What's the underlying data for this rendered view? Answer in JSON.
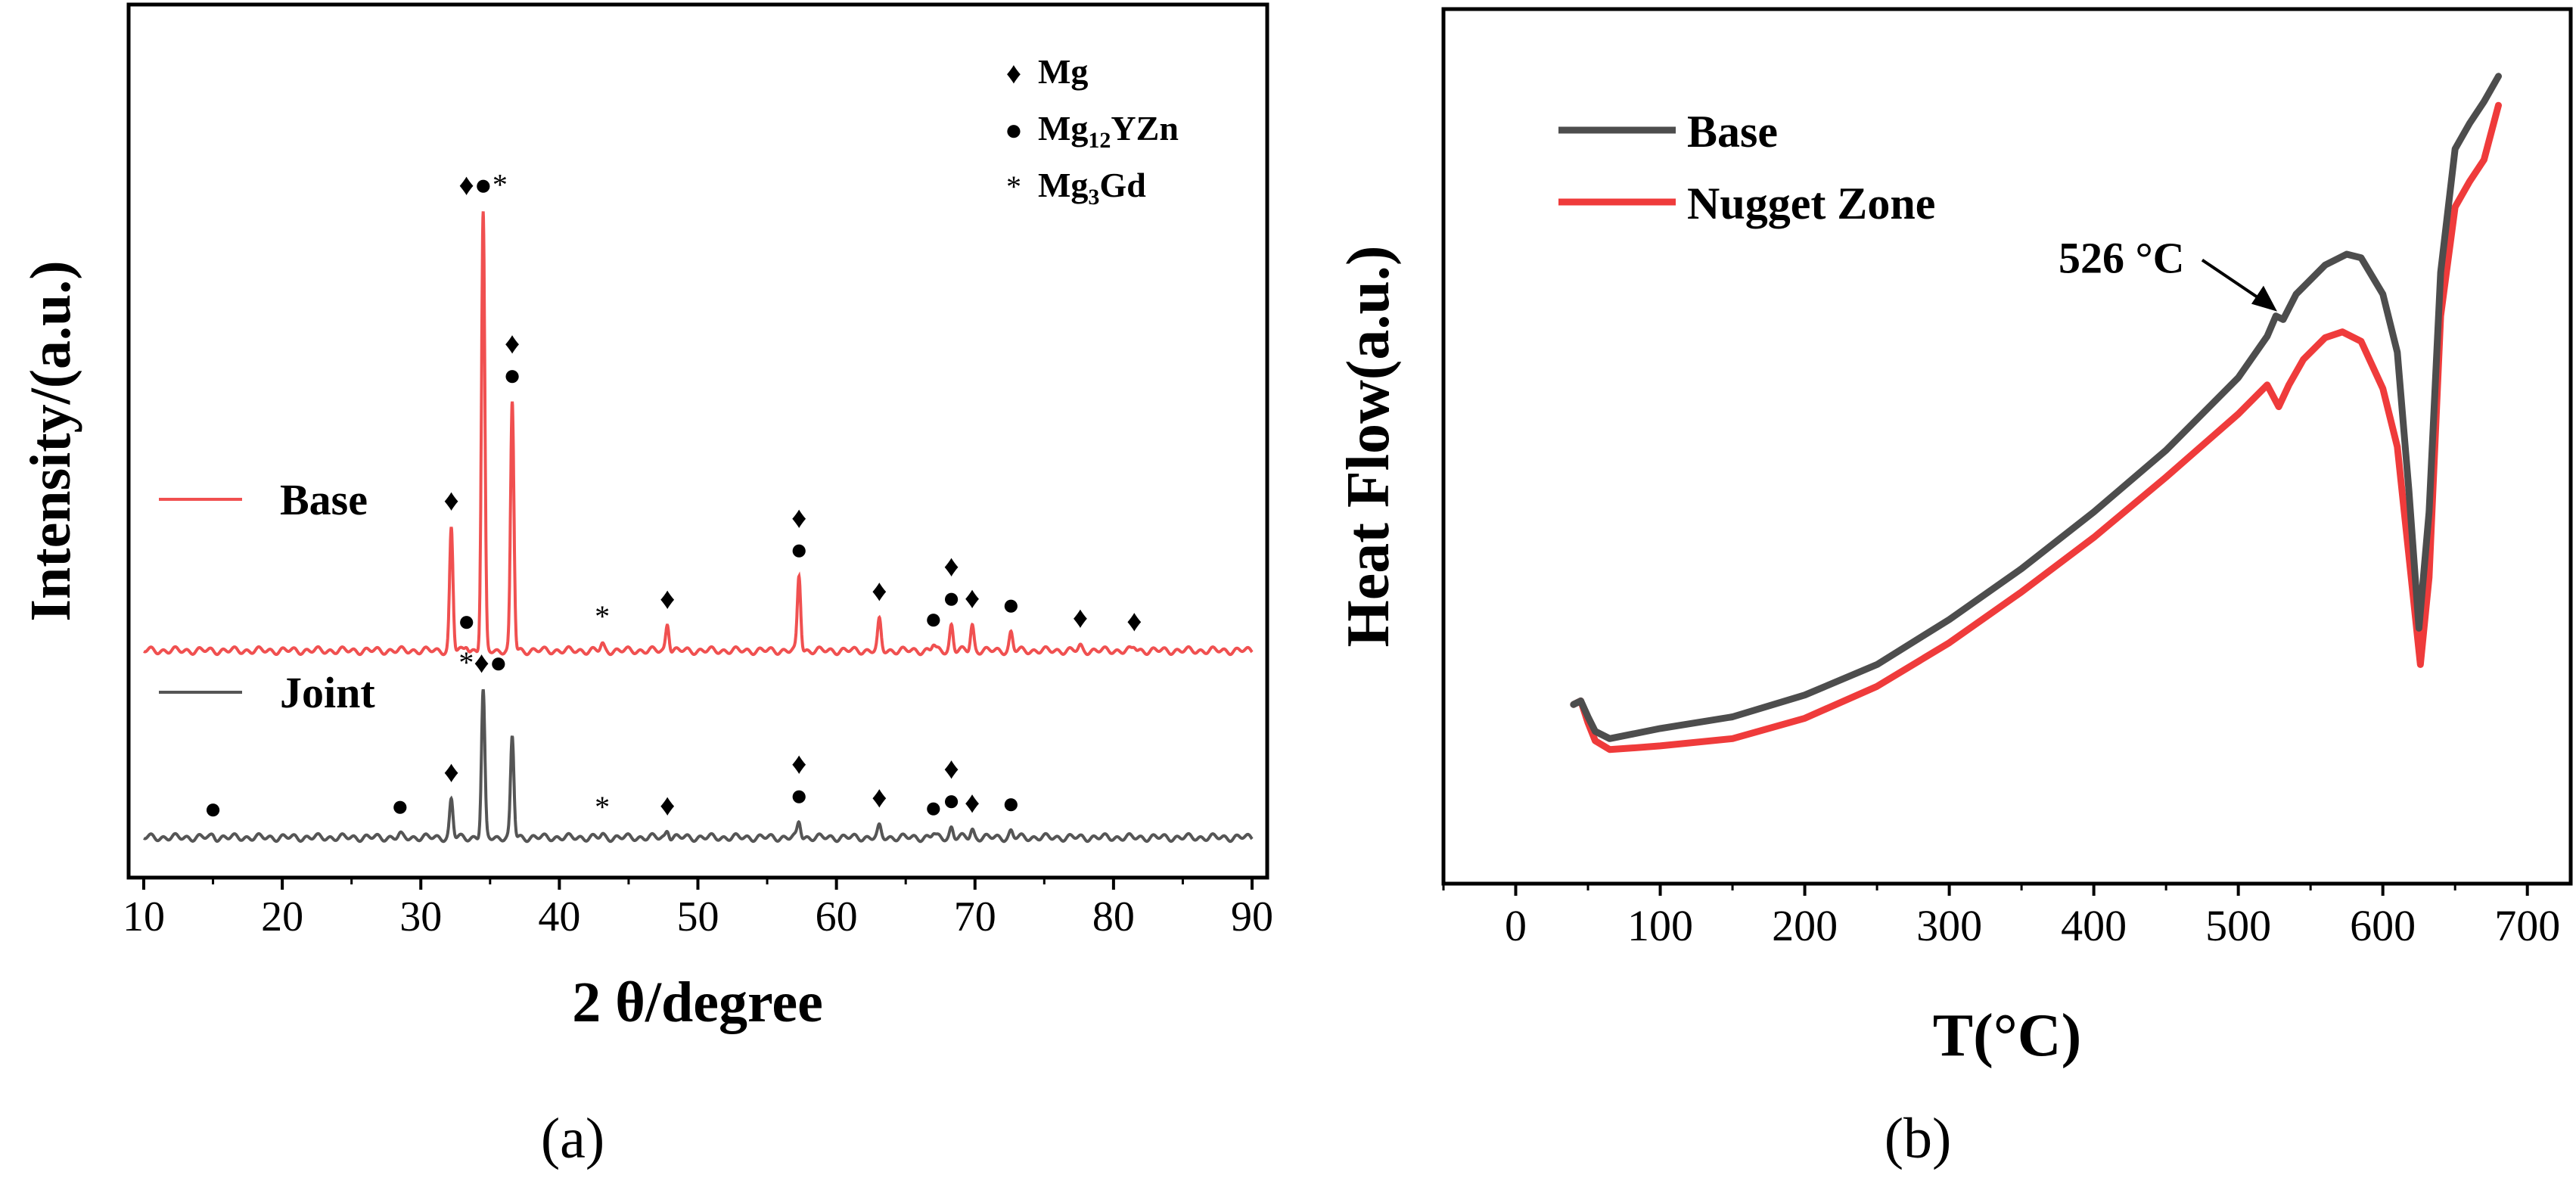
{
  "chart_data": [
    {
      "type": "line",
      "panel_label": "(a)",
      "xlabel": "2 θ/degree",
      "ylabel": "Intensity/(a.u.)",
      "xlim": [
        10,
        90
      ],
      "xticks": [
        10,
        20,
        30,
        40,
        50,
        60,
        70,
        80,
        90
      ],
      "grid": false,
      "legend_placement": "inline",
      "series": [
        {
          "name": "Base",
          "color": "#f05050",
          "baseline": 1.0,
          "peaks": [
            {
              "x": 32.2,
              "h": 0.62
            },
            {
              "x": 33.3,
              "h": 0.03
            },
            {
              "x": 34.5,
              "h": 2.22
            },
            {
              "x": 36.6,
              "h": 1.26
            },
            {
              "x": 43.1,
              "h": 0.03
            },
            {
              "x": 47.8,
              "h": 0.14
            },
            {
              "x": 57.3,
              "h": 0.38
            },
            {
              "x": 63.1,
              "h": 0.15
            },
            {
              "x": 67.0,
              "h": 0.03
            },
            {
              "x": 68.3,
              "h": 0.13
            },
            {
              "x": 69.8,
              "h": 0.13
            },
            {
              "x": 72.6,
              "h": 0.09
            },
            {
              "x": 77.6,
              "h": 0.02
            },
            {
              "x": 81.5,
              "h": 0.02
            }
          ]
        },
        {
          "name": "Joint",
          "color": "#555555",
          "baseline": 0.05,
          "peaks": [
            {
              "x": 15.0,
              "h": 0.01
            },
            {
              "x": 28.5,
              "h": 0.01
            },
            {
              "x": 32.2,
              "h": 0.19
            },
            {
              "x": 34.5,
              "h": 0.74
            },
            {
              "x": 36.6,
              "h": 0.51
            },
            {
              "x": 43.1,
              "h": 0.01
            },
            {
              "x": 47.8,
              "h": 0.04
            },
            {
              "x": 57.3,
              "h": 0.08
            },
            {
              "x": 63.1,
              "h": 0.05
            },
            {
              "x": 67.0,
              "h": 0.02
            },
            {
              "x": 68.3,
              "h": 0.05
            },
            {
              "x": 69.8,
              "h": 0.04
            },
            {
              "x": 72.6,
              "h": 0.03
            }
          ]
        }
      ],
      "phase_legend": [
        {
          "symbol": "♦",
          "label": "Mg",
          "sub": "",
          "suffix": ""
        },
        {
          "symbol": "●",
          "label": "Mg",
          "sub": "12",
          "suffix": "YZn"
        },
        {
          "symbol": "*",
          "label": "Mg",
          "sub": "3",
          "suffix": "Gd"
        }
      ],
      "phase_markers": {
        "Base": [
          {
            "x": 32.2,
            "symbols": "♦"
          },
          {
            "x": 33.3,
            "symbols": "●"
          },
          {
            "x": 34.5,
            "symbols": "♦●*"
          },
          {
            "x": 36.6,
            "symbols": "♦●"
          },
          {
            "x": 43.1,
            "symbols": "*"
          },
          {
            "x": 47.8,
            "symbols": "♦"
          },
          {
            "x": 57.3,
            "symbols": "♦●"
          },
          {
            "x": 63.1,
            "symbols": "♦"
          },
          {
            "x": 67.0,
            "symbols": "●"
          },
          {
            "x": 68.3,
            "symbols": "♦●"
          },
          {
            "x": 69.8,
            "symbols": "♦"
          },
          {
            "x": 72.6,
            "symbols": "●"
          },
          {
            "x": 77.6,
            "symbols": "♦"
          },
          {
            "x": 81.5,
            "symbols": "♦"
          }
        ],
        "Joint": [
          {
            "x": 15.0,
            "symbols": "●"
          },
          {
            "x": 28.5,
            "symbols": "●"
          },
          {
            "x": 32.2,
            "symbols": "♦"
          },
          {
            "x": 34.5,
            "symbols": "*♦●"
          },
          {
            "x": 43.1,
            "symbols": "*"
          },
          {
            "x": 47.8,
            "symbols": "♦"
          },
          {
            "x": 57.3,
            "symbols": "♦●"
          },
          {
            "x": 63.1,
            "symbols": "♦"
          },
          {
            "x": 67.0,
            "symbols": "●"
          },
          {
            "x": 68.3,
            "symbols": "♦●"
          },
          {
            "x": 69.8,
            "symbols": "♦"
          },
          {
            "x": 72.6,
            "symbols": "●"
          }
        ]
      }
    },
    {
      "type": "line",
      "panel_label": "(b)",
      "xlabel": "T(°C)",
      "ylabel": "Heat Flow(a.u.)",
      "xlim": [
        -50,
        730
      ],
      "ylim": [
        0,
        10
      ],
      "xticks": [
        0,
        100,
        200,
        300,
        400,
        500,
        600,
        700
      ],
      "grid": false,
      "legend_placement": "top-left",
      "annotation": {
        "text": "526 °C",
        "x": 530,
        "y": 6.92
      },
      "series": [
        {
          "name": "Base",
          "color": "#4d4d4d",
          "points": [
            [
              40,
              1.55
            ],
            [
              45,
              1.6
            ],
            [
              50,
              1.38
            ],
            [
              55,
              1.18
            ],
            [
              65,
              1.08
            ],
            [
              80,
              1.14
            ],
            [
              100,
              1.22
            ],
            [
              150,
              1.38
            ],
            [
              200,
              1.68
            ],
            [
              250,
              2.1
            ],
            [
              300,
              2.72
            ],
            [
              350,
              3.42
            ],
            [
              400,
              4.2
            ],
            [
              450,
              5.05
            ],
            [
              500,
              6.05
            ],
            [
              520,
              6.62
            ],
            [
              526,
              6.9
            ],
            [
              531,
              6.85
            ],
            [
              540,
              7.2
            ],
            [
              560,
              7.6
            ],
            [
              575,
              7.75
            ],
            [
              585,
              7.7
            ],
            [
              600,
              7.2
            ],
            [
              610,
              6.4
            ],
            [
              618,
              4.5
            ],
            [
              625,
              2.6
            ],
            [
              632,
              4.2
            ],
            [
              640,
              7.5
            ],
            [
              650,
              9.2
            ],
            [
              660,
              9.55
            ],
            [
              670,
              9.85
            ],
            [
              680,
              10.2
            ]
          ]
        },
        {
          "name": "Nugget Zone",
          "color": "#ef3b3b",
          "points": [
            [
              40,
              1.55
            ],
            [
              45,
              1.6
            ],
            [
              50,
              1.3
            ],
            [
              55,
              1.05
            ],
            [
              65,
              0.93
            ],
            [
              80,
              0.95
            ],
            [
              100,
              0.98
            ],
            [
              150,
              1.08
            ],
            [
              200,
              1.36
            ],
            [
              250,
              1.8
            ],
            [
              300,
              2.4
            ],
            [
              350,
              3.1
            ],
            [
              400,
              3.85
            ],
            [
              450,
              4.68
            ],
            [
              500,
              5.55
            ],
            [
              520,
              5.95
            ],
            [
              528,
              5.65
            ],
            [
              535,
              5.95
            ],
            [
              545,
              6.3
            ],
            [
              560,
              6.6
            ],
            [
              572,
              6.68
            ],
            [
              585,
              6.55
            ],
            [
              600,
              5.9
            ],
            [
              610,
              5.1
            ],
            [
              618,
              3.6
            ],
            [
              626,
              2.1
            ],
            [
              632,
              3.3
            ],
            [
              640,
              6.9
            ],
            [
              650,
              8.4
            ],
            [
              660,
              8.75
            ],
            [
              670,
              9.05
            ],
            [
              680,
              9.8
            ]
          ]
        }
      ]
    }
  ]
}
